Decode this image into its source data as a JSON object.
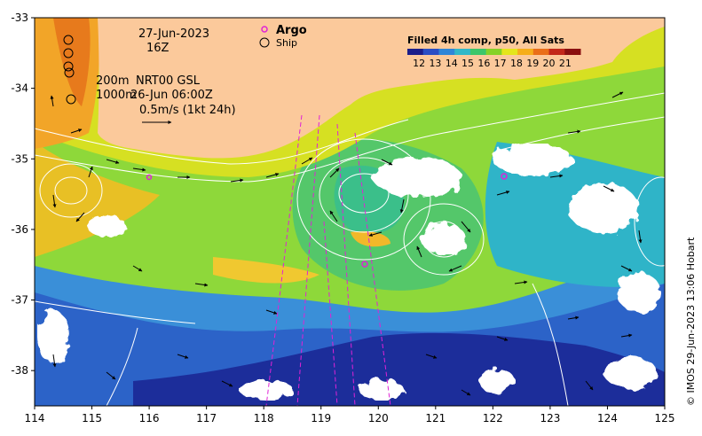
{
  "header": {
    "date": "27-Jun-2023",
    "hour": "16Z"
  },
  "legend": {
    "argo_label": "Argo",
    "ship_label": "Ship"
  },
  "currents": {
    "depth_line": "200m",
    "model_label": "NRT00 GSL",
    "depth2_line": "1000m",
    "analysis_time": "26-Jun 06:00Z",
    "scale_label": "0.5m/s (1kt 24h)"
  },
  "colorbar": {
    "title": "Filled 4h comp, p50, All Sats",
    "ticks": [
      "12",
      "13",
      "14",
      "15",
      "16",
      "17",
      "18",
      "19",
      "20",
      "21"
    ],
    "colors": [
      "#1b1e8a",
      "#2a4ec4",
      "#2f86d8",
      "#31b8c8",
      "#3dc66a",
      "#86d228",
      "#e4e61c",
      "#f6ae1a",
      "#ea6e18",
      "#c2281a",
      "#8a1010"
    ]
  },
  "axes": {
    "x_ticks": [
      "114",
      "115",
      "116",
      "117",
      "118",
      "119",
      "120",
      "121",
      "122",
      "123",
      "124",
      "125"
    ],
    "y_ticks": [
      "-33",
      "-34",
      "-35",
      "-36",
      "-37",
      "-38"
    ],
    "x_range": [
      114,
      125
    ],
    "y_range": [
      -38.5,
      -33
    ]
  },
  "credit": "© IMOS 29-Jun-2023 13:06 Hobart",
  "colors": {
    "land": "#fbc99b",
    "argo": "#e022d6",
    "contour": "#ffffff",
    "arrow": "#000000"
  }
}
